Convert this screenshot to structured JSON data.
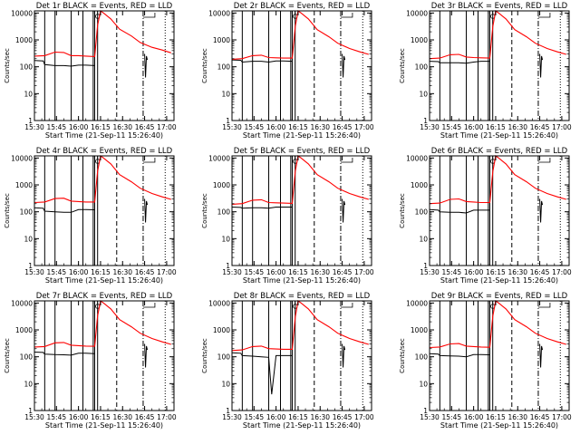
{
  "figure": {
    "description_free": true,
    "grid": "3x3",
    "colors": {
      "events": "#000000",
      "lld": "#ff0000",
      "axes": "#000000",
      "background": "#ffffff"
    }
  },
  "chart_data": [
    {
      "type": "line",
      "title": "Det 1r BLACK = Events, RED = LLD",
      "xlabel": "Start Time (21-Sep-11 15:26:40)",
      "ylabel": "Counts/sec",
      "yscale": "log",
      "ylim": [
        1,
        12000
      ],
      "xlim": [
        "15:30",
        "17:05"
      ],
      "x_ticks": [
        "15:30",
        "15:45",
        "16:00",
        "16:15",
        "16:30",
        "16:45",
        "17:00"
      ],
      "y_ticks": [
        "1",
        "10",
        "100",
        "1000",
        "10000"
      ],
      "grid": false,
      "series": [
        {
          "name": "Events",
          "color": "#000000",
          "x": [
            "15:30",
            "15:36",
            "15:37",
            "15:44",
            "15:50",
            "15:55",
            "16:00",
            "16:05",
            "16:11"
          ],
          "y": [
            170,
            165,
            120,
            110,
            110,
            105,
            115,
            115,
            110
          ]
        },
        {
          "name": "LLD",
          "color": "#ff0000",
          "x": [
            "15:30",
            "15:37",
            "15:44",
            "15:50",
            "15:55",
            "16:00",
            "16:05",
            "16:11",
            "16:13",
            "16:15",
            "16:17",
            "16:22",
            "16:28",
            "16:36",
            "16:42",
            "16:50",
            "16:57",
            "17:03"
          ],
          "y": [
            250,
            260,
            350,
            340,
            260,
            260,
            250,
            240,
            3500,
            12000,
            10000,
            6000,
            2500,
            1400,
            800,
            530,
            420,
            330
          ]
        }
      ]
    },
    {
      "type": "line",
      "title": "Det 2r BLACK = Events, RED = LLD",
      "xlabel": "Start Time (21-Sep-11 15:26:40)",
      "ylabel": "Counts/sec",
      "yscale": "log",
      "ylim": [
        1,
        12000
      ],
      "xlim": [
        "15:30",
        "17:05"
      ],
      "x_ticks": [
        "15:30",
        "15:45",
        "16:00",
        "16:15",
        "16:30",
        "16:45",
        "17:00"
      ],
      "y_ticks": [
        "1",
        "10",
        "100",
        "1000",
        "10000"
      ],
      "grid": false,
      "series": [
        {
          "name": "Events",
          "color": "#000000",
          "x": [
            "15:30",
            "15:36",
            "15:37",
            "15:44",
            "15:50",
            "15:55",
            "16:00",
            "16:05",
            "16:11"
          ],
          "y": [
            180,
            175,
            150,
            160,
            160,
            150,
            165,
            165,
            160
          ]
        },
        {
          "name": "LLD",
          "color": "#ff0000",
          "x": [
            "15:30",
            "15:37",
            "15:44",
            "15:50",
            "15:55",
            "16:00",
            "16:05",
            "16:11",
            "16:13",
            "16:15",
            "16:17",
            "16:22",
            "16:28",
            "16:36",
            "16:42",
            "16:50",
            "16:57",
            "17:03"
          ],
          "y": [
            190,
            200,
            260,
            270,
            220,
            215,
            210,
            210,
            3000,
            12000,
            10000,
            6000,
            2400,
            1300,
            750,
            480,
            360,
            290
          ]
        }
      ]
    },
    {
      "type": "line",
      "title": "Det 3r BLACK = Events, RED = LLD",
      "xlabel": "Start Time (21-Sep-11 15:26:40)",
      "ylabel": "Counts/sec",
      "yscale": "log",
      "ylim": [
        1,
        12000
      ],
      "xlim": [
        "15:30",
        "17:05"
      ],
      "x_ticks": [
        "15:30",
        "15:45",
        "16:00",
        "16:15",
        "16:30",
        "16:45",
        "17:00"
      ],
      "y_ticks": [
        "1",
        "10",
        "100",
        "1000",
        "10000"
      ],
      "grid": false,
      "series": [
        {
          "name": "Events",
          "color": "#000000",
          "x": [
            "15:30",
            "15:36",
            "15:37",
            "15:44",
            "15:50",
            "15:55",
            "16:00",
            "16:05",
            "16:11"
          ],
          "y": [
            160,
            155,
            140,
            140,
            140,
            135,
            150,
            160,
            160
          ]
        },
        {
          "name": "LLD",
          "color": "#ff0000",
          "x": [
            "15:30",
            "15:37",
            "15:44",
            "15:50",
            "15:55",
            "16:00",
            "16:05",
            "16:11",
            "16:13",
            "16:15",
            "16:17",
            "16:22",
            "16:28",
            "16:36",
            "16:42",
            "16:50",
            "16:57",
            "17:03"
          ],
          "y": [
            200,
            210,
            280,
            290,
            230,
            220,
            215,
            210,
            3000,
            12000,
            10000,
            6000,
            2400,
            1300,
            750,
            480,
            360,
            290
          ]
        }
      ]
    },
    {
      "type": "line",
      "title": "Det 4r BLACK = Events, RED = LLD",
      "xlabel": "Start Time (21-Sep-11 15:26:40)",
      "ylabel": "Counts/sec",
      "yscale": "log",
      "ylim": [
        1,
        12000
      ],
      "xlim": [
        "15:30",
        "17:05"
      ],
      "x_ticks": [
        "15:30",
        "15:45",
        "16:00",
        "16:15",
        "16:30",
        "16:45",
        "17:00"
      ],
      "y_ticks": [
        "1",
        "10",
        "100",
        "1000",
        "10000"
      ],
      "grid": false,
      "series": [
        {
          "name": "Events",
          "color": "#000000",
          "x": [
            "15:30",
            "15:36",
            "15:37",
            "15:44",
            "15:50",
            "15:55",
            "16:00",
            "16:05",
            "16:11"
          ],
          "y": [
            140,
            135,
            105,
            100,
            95,
            95,
            120,
            120,
            118
          ]
        },
        {
          "name": "LLD",
          "color": "#ff0000",
          "x": [
            "15:30",
            "15:37",
            "15:44",
            "15:50",
            "15:55",
            "16:00",
            "16:05",
            "16:11",
            "16:13",
            "16:15",
            "16:17",
            "16:22",
            "16:28",
            "16:36",
            "16:42",
            "16:50",
            "16:57",
            "17:03"
          ],
          "y": [
            220,
            230,
            310,
            320,
            250,
            240,
            230,
            230,
            3200,
            12000,
            10000,
            6000,
            2400,
            1300,
            750,
            480,
            360,
            290
          ]
        }
      ]
    },
    {
      "type": "line",
      "title": "Det 5r BLACK = Events, RED = LLD",
      "xlabel": "Start Time (21-Sep-11 15:26:40)",
      "ylabel": "Counts/sec",
      "yscale": "log",
      "ylim": [
        1,
        12000
      ],
      "xlim": [
        "15:30",
        "17:05"
      ],
      "x_ticks": [
        "15:30",
        "15:45",
        "16:00",
        "16:15",
        "16:30",
        "16:45",
        "17:00"
      ],
      "y_ticks": [
        "1",
        "10",
        "100",
        "1000",
        "10000"
      ],
      "grid": false,
      "series": [
        {
          "name": "Events",
          "color": "#000000",
          "x": [
            "15:30",
            "15:36",
            "15:37",
            "15:44",
            "15:50",
            "15:55",
            "16:00",
            "16:05",
            "16:11"
          ],
          "y": [
            150,
            145,
            135,
            140,
            140,
            135,
            150,
            150,
            150
          ]
        },
        {
          "name": "LLD",
          "color": "#ff0000",
          "x": [
            "15:30",
            "15:37",
            "15:44",
            "15:50",
            "15:55",
            "16:00",
            "16:05",
            "16:11",
            "16:13",
            "16:15",
            "16:17",
            "16:22",
            "16:28",
            "16:36",
            "16:42",
            "16:50",
            "16:57",
            "17:03"
          ],
          "y": [
            190,
            200,
            270,
            280,
            220,
            215,
            210,
            205,
            3000,
            12000,
            10000,
            6000,
            2400,
            1300,
            750,
            480,
            360,
            290
          ]
        }
      ]
    },
    {
      "type": "line",
      "title": "Det 6r BLACK = Events, RED = LLD",
      "xlabel": "Start Time (21-Sep-11 15:26:40)",
      "ylabel": "Counts/sec",
      "yscale": "log",
      "ylim": [
        1,
        12000
      ],
      "xlim": [
        "15:30",
        "17:05"
      ],
      "x_ticks": [
        "15:30",
        "15:45",
        "16:00",
        "16:15",
        "16:30",
        "16:45",
        "17:00"
      ],
      "y_ticks": [
        "1",
        "10",
        "100",
        "1000",
        "10000"
      ],
      "grid": false,
      "series": [
        {
          "name": "Events",
          "color": "#000000",
          "x": [
            "15:30",
            "15:36",
            "15:37",
            "15:44",
            "15:50",
            "15:55",
            "16:00",
            "16:05",
            "16:11"
          ],
          "y": [
            120,
            115,
            100,
            95,
            95,
            90,
            115,
            115,
            115
          ]
        },
        {
          "name": "LLD",
          "color": "#ff0000",
          "x": [
            "15:30",
            "15:37",
            "15:44",
            "15:50",
            "15:55",
            "16:00",
            "16:05",
            "16:11",
            "16:13",
            "16:15",
            "16:17",
            "16:22",
            "16:28",
            "16:36",
            "16:42",
            "16:50",
            "16:57",
            "17:03"
          ],
          "y": [
            200,
            210,
            290,
            300,
            240,
            230,
            220,
            220,
            3000,
            12000,
            10000,
            6000,
            2400,
            1300,
            750,
            480,
            360,
            290
          ]
        }
      ]
    },
    {
      "type": "line",
      "title": "Det 7r BLACK = Events, RED = LLD",
      "xlabel": "Start Time (21-Sep-11 15:26:40)",
      "ylabel": "Counts/sec",
      "yscale": "log",
      "ylim": [
        1,
        12000
      ],
      "xlim": [
        "15:30",
        "17:05"
      ],
      "x_ticks": [
        "15:30",
        "15:45",
        "16:00",
        "16:15",
        "16:30",
        "16:45",
        "17:00"
      ],
      "y_ticks": [
        "1",
        "10",
        "100",
        "1000",
        "10000"
      ],
      "grid": false,
      "series": [
        {
          "name": "Events",
          "color": "#000000",
          "x": [
            "15:30",
            "15:36",
            "15:37",
            "15:44",
            "15:50",
            "15:55",
            "16:00",
            "16:05",
            "16:11"
          ],
          "y": [
            150,
            145,
            125,
            120,
            118,
            115,
            135,
            135,
            130
          ]
        },
        {
          "name": "LLD",
          "color": "#ff0000",
          "x": [
            "15:30",
            "15:37",
            "15:44",
            "15:50",
            "15:55",
            "16:00",
            "16:05",
            "16:11",
            "16:13",
            "16:15",
            "16:17",
            "16:22",
            "16:28",
            "16:36",
            "16:42",
            "16:50",
            "16:57",
            "17:03"
          ],
          "y": [
            230,
            240,
            330,
            340,
            270,
            260,
            250,
            245,
            3300,
            12000,
            10000,
            6000,
            2400,
            1300,
            750,
            480,
            360,
            290
          ]
        }
      ]
    },
    {
      "type": "line",
      "title": "Det 8r BLACK = Events, RED = LLD",
      "xlabel": "Start Time (21-Sep-11 15:26:40)",
      "ylabel": "Counts/sec",
      "yscale": "log",
      "ylim": [
        1,
        12000
      ],
      "xlim": [
        "15:30",
        "17:05"
      ],
      "x_ticks": [
        "15:30",
        "15:45",
        "16:00",
        "16:15",
        "16:30",
        "16:45",
        "17:00"
      ],
      "y_ticks": [
        "1",
        "10",
        "100",
        "1000",
        "10000"
      ],
      "grid": false,
      "series": [
        {
          "name": "Events",
          "color": "#000000",
          "x": [
            "15:30",
            "15:36",
            "15:37",
            "15:44",
            "15:50",
            "15:55",
            "15:57",
            "16:00",
            "16:05",
            "16:11"
          ],
          "y": [
            140,
            135,
            110,
            105,
            100,
            95,
            4,
            110,
            110,
            110
          ]
        },
        {
          "name": "LLD",
          "color": "#ff0000",
          "x": [
            "15:30",
            "15:37",
            "15:44",
            "15:50",
            "15:55",
            "16:00",
            "16:05",
            "16:11",
            "16:13",
            "16:15",
            "16:17",
            "16:22",
            "16:28",
            "16:36",
            "16:42",
            "16:50",
            "16:57",
            "17:03"
          ],
          "y": [
            170,
            180,
            240,
            250,
            200,
            195,
            190,
            190,
            2800,
            12000,
            10000,
            6000,
            2400,
            1300,
            750,
            480,
            360,
            290
          ]
        }
      ]
    },
    {
      "type": "line",
      "title": "Det 9r BLACK = Events, RED = LLD",
      "xlabel": "Start Time (21-Sep-11 15:26:40)",
      "ylabel": "Counts/sec",
      "yscale": "log",
      "ylim": [
        1,
        12000
      ],
      "xlim": [
        "15:30",
        "17:05"
      ],
      "x_ticks": [
        "15:30",
        "15:45",
        "16:00",
        "16:15",
        "16:30",
        "16:45",
        "17:00"
      ],
      "y_ticks": [
        "1",
        "10",
        "100",
        "1000",
        "10000"
      ],
      "grid": false,
      "series": [
        {
          "name": "Events",
          "color": "#000000",
          "x": [
            "15:30",
            "15:36",
            "15:37",
            "15:44",
            "15:50",
            "15:55",
            "16:00",
            "16:05",
            "16:11"
          ],
          "y": [
            130,
            125,
            110,
            108,
            105,
            100,
            120,
            120,
            118
          ]
        },
        {
          "name": "LLD",
          "color": "#ff0000",
          "x": [
            "15:30",
            "15:37",
            "15:44",
            "15:50",
            "15:55",
            "16:00",
            "16:05",
            "16:11",
            "16:13",
            "16:15",
            "16:17",
            "16:22",
            "16:28",
            "16:36",
            "16:42",
            "16:50",
            "16:57",
            "17:03"
          ],
          "y": [
            220,
            230,
            300,
            310,
            250,
            240,
            230,
            225,
            3100,
            12000,
            10000,
            6000,
            2400,
            1300,
            750,
            480,
            360,
            290
          ]
        }
      ]
    }
  ]
}
